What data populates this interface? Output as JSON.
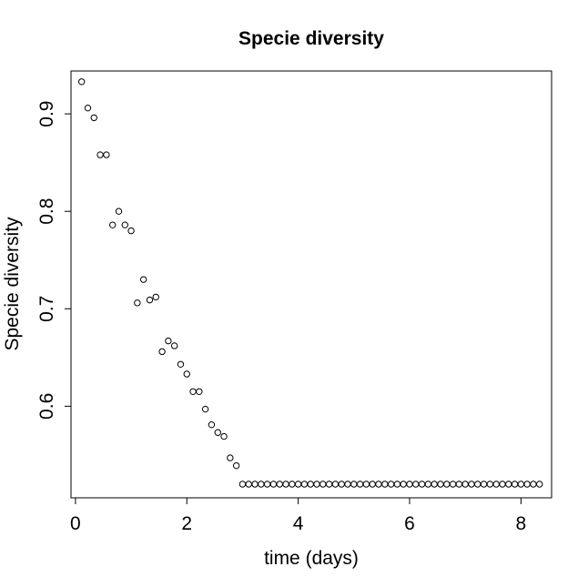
{
  "chart_data": {
    "type": "scatter",
    "title": "Specie diversity",
    "xlabel": "time (days)",
    "ylabel": "Specie diversity",
    "xlim": [
      -0.08,
      8.55
    ],
    "ylim": [
      0.506,
      0.944
    ],
    "xticks": [
      0,
      2,
      4,
      6,
      8
    ],
    "xtick_labels": [
      "0",
      "2",
      "4",
      "6",
      "8"
    ],
    "yticks": [
      0.6,
      0.7,
      0.8,
      0.9
    ],
    "ytick_labels": [
      "0.6",
      "0.7",
      "0.8",
      "0.9"
    ],
    "grid": false,
    "marker": "open-circle",
    "color": "#000000",
    "x": [
      0.111,
      0.222,
      0.333,
      0.444,
      0.556,
      0.667,
      0.778,
      0.889,
      1.0,
      1.111,
      1.222,
      1.333,
      1.444,
      1.556,
      1.667,
      1.778,
      1.889,
      2.0,
      2.111,
      2.222,
      2.333,
      2.444,
      2.556,
      2.667,
      2.778,
      2.889,
      3.0,
      3.111,
      3.222,
      3.333,
      3.444,
      3.556,
      3.667,
      3.778,
      3.889,
      4.0,
      4.111,
      4.222,
      4.333,
      4.444,
      4.556,
      4.667,
      4.778,
      4.889,
      5.0,
      5.111,
      5.222,
      5.333,
      5.444,
      5.556,
      5.667,
      5.778,
      5.889,
      6.0,
      6.111,
      6.222,
      6.333,
      6.444,
      6.556,
      6.667,
      6.778,
      6.889,
      7.0,
      7.111,
      7.222,
      7.333,
      7.444,
      7.556,
      7.667,
      7.778,
      7.889,
      8.0,
      8.111,
      8.222,
      8.333
    ],
    "y": [
      0.933,
      0.906,
      0.896,
      0.858,
      0.858,
      0.786,
      0.8,
      0.786,
      0.78,
      0.706,
      0.73,
      0.709,
      0.712,
      0.656,
      0.667,
      0.662,
      0.643,
      0.633,
      0.615,
      0.615,
      0.597,
      0.581,
      0.573,
      0.569,
      0.547,
      0.539,
      0.52,
      0.52,
      0.52,
      0.52,
      0.52,
      0.52,
      0.52,
      0.52,
      0.52,
      0.52,
      0.52,
      0.52,
      0.52,
      0.52,
      0.52,
      0.52,
      0.52,
      0.52,
      0.52,
      0.52,
      0.52,
      0.52,
      0.52,
      0.52,
      0.52,
      0.52,
      0.52,
      0.52,
      0.52,
      0.52,
      0.52,
      0.52,
      0.52,
      0.52,
      0.52,
      0.52,
      0.52,
      0.52,
      0.52,
      0.52,
      0.52,
      0.52,
      0.52,
      0.52,
      0.52,
      0.52,
      0.52,
      0.52,
      0.52
    ]
  }
}
